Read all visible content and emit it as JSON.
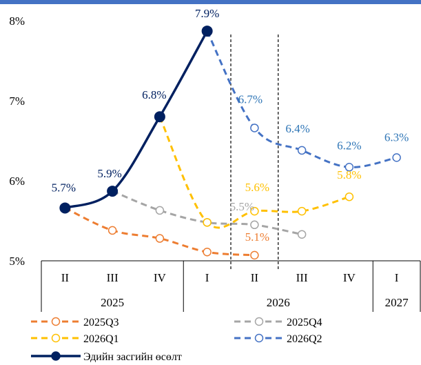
{
  "chart_data": {
    "type": "line",
    "categories": [
      "II",
      "III",
      "IV",
      "I",
      "II",
      "III",
      "IV",
      "I"
    ],
    "years": [
      {
        "label": "2025",
        "from": 0,
        "to": 2
      },
      {
        "label": "2026",
        "from": 3,
        "to": 6
      },
      {
        "label": "2027",
        "from": 7,
        "to": 7
      }
    ],
    "ylim": [
      5,
      8
    ],
    "yticks": [
      "5%",
      "6%",
      "7%",
      "8%"
    ],
    "legend_position": "bottom",
    "series": [
      {
        "key": "s25q3",
        "name": "2025Q3",
        "color": "#ED7D31",
        "dashed": true,
        "open": true,
        "values": [
          5.66,
          5.38,
          5.28,
          5.11,
          5.07,
          null,
          null,
          null
        ],
        "labels": []
      },
      {
        "key": "s25q4",
        "name": "2025Q4",
        "color": "#A5A5A5",
        "dashed": true,
        "open": true,
        "values": [
          null,
          5.87,
          5.63,
          5.48,
          5.45,
          5.33,
          null,
          null
        ],
        "labels": []
      },
      {
        "key": "s26q1",
        "name": "2026Q1",
        "color": "#FFC000",
        "dashed": true,
        "open": true,
        "values": [
          null,
          null,
          6.8,
          5.48,
          5.62,
          5.62,
          5.8,
          null
        ],
        "labels": []
      },
      {
        "key": "s26q2",
        "name": "2026Q2",
        "color": "#4472C4",
        "dashed": true,
        "open": true,
        "values": [
          null,
          null,
          null,
          7.87,
          6.66,
          6.38,
          6.17,
          6.29
        ],
        "labels": []
      },
      {
        "key": "gdp",
        "name": "Эдийн засгийн өсөлт",
        "color": "#002060",
        "dashed": false,
        "open": false,
        "values": [
          5.66,
          5.87,
          6.8,
          7.87,
          null,
          null,
          null,
          null
        ],
        "labels": []
      }
    ],
    "data_labels": [
      {
        "text": "5.7%",
        "color": "#002060",
        "cat": 0,
        "val": 5.66
      },
      {
        "text": "5.9%",
        "color": "#002060",
        "cat": 1,
        "val": 5.87
      },
      {
        "text": "6.8%",
        "color": "#002060",
        "cat": 2,
        "val": 6.8
      },
      {
        "text": "7.9%",
        "color": "#002060",
        "cat": 3,
        "val": 7.87
      },
      {
        "text": "6.7%",
        "color": "#2E75B6",
        "cat": 4,
        "val": 6.66
      },
      {
        "text": "6.4%",
        "color": "#2E75B6",
        "cat": 5,
        "val": 6.38
      },
      {
        "text": "6.2%",
        "color": "#2E75B6",
        "cat": 6,
        "val": 6.17
      },
      {
        "text": "6.3%",
        "color": "#2E75B6",
        "cat": 7,
        "val": 6.29
      },
      {
        "text": "5.6%",
        "color": "#FFC000",
        "cat": 4,
        "val": 5.62
      },
      {
        "text": "5.8%",
        "color": "#FFC000",
        "cat": 6,
        "val": 5.8
      },
      {
        "text": "5.5%",
        "color": "#A5A5A5",
        "cat": 4,
        "val": 5.45
      },
      {
        "text": "5.1%",
        "color": "#ED7D31",
        "cat": 4,
        "val": 5.07
      }
    ]
  }
}
